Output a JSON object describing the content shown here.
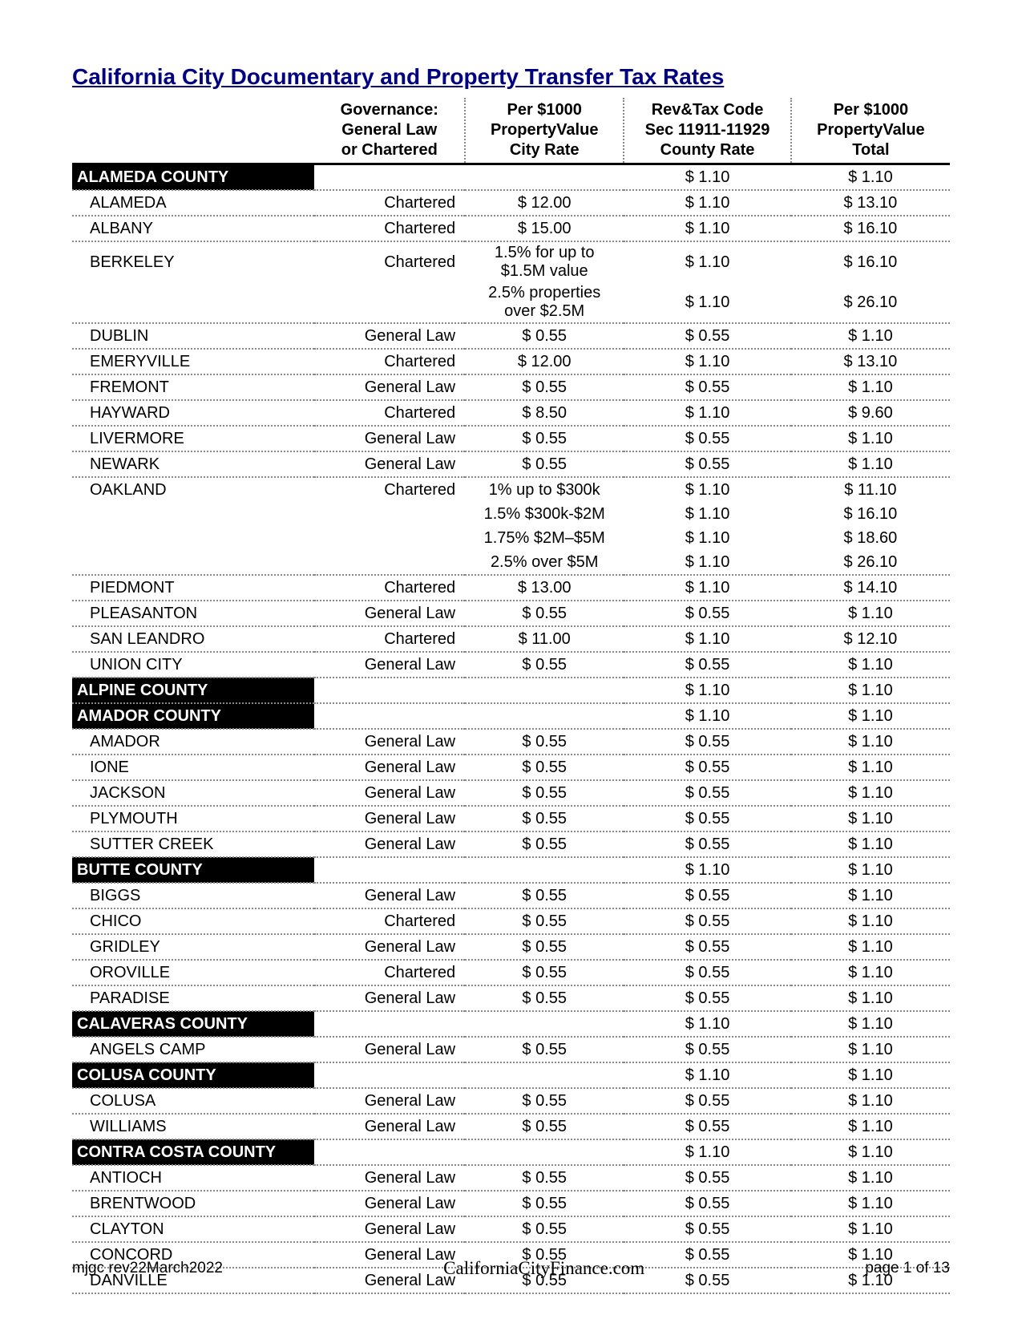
{
  "title": "California City Documentary and Property Transfer Tax Rates",
  "headers": {
    "col0": "",
    "col1": "Governance:\nGeneral Law\nor Chartered",
    "col2": "Per $1000\nPropertyValue\nCity Rate",
    "col3": "Rev&Tax Code\nSec 11911-11929\nCounty Rate",
    "col4": "Per $1000\nPropertyValue\nTotal"
  },
  "rows": [
    {
      "type": "county",
      "name": "ALAMEDA COUNTY",
      "gov": "",
      "city": "",
      "county": "$ 1.10",
      "total": "$ 1.10"
    },
    {
      "type": "city",
      "name": "ALAMEDA",
      "gov": "Chartered",
      "city": "$ 12.00",
      "county": "$ 1.10",
      "total": "$ 13.10"
    },
    {
      "type": "city",
      "name": "ALBANY",
      "gov": "Chartered",
      "city": "$ 15.00",
      "county": "$ 1.10",
      "total": "$ 16.10"
    },
    {
      "type": "city",
      "name": "BERKELEY",
      "gov": "Chartered",
      "city": "1.5% for up to\n$1.5M value",
      "county": "$ 1.10",
      "total": "$ 16.10",
      "noborder": true
    },
    {
      "type": "city",
      "name": "",
      "gov": "",
      "city": "2.5% properties\nover $2.5M",
      "county": "$ 1.10",
      "total": "$ 26.10"
    },
    {
      "type": "city",
      "name": "DUBLIN",
      "gov": "General Law",
      "city": "$ 0.55",
      "county": "$ 0.55",
      "total": "$ 1.10"
    },
    {
      "type": "city",
      "name": "EMERYVILLE",
      "gov": "Chartered",
      "city": "$ 12.00",
      "county": "$ 1.10",
      "total": "$ 13.10"
    },
    {
      "type": "city",
      "name": "FREMONT",
      "gov": "General Law",
      "city": "$ 0.55",
      "county": "$ 0.55",
      "total": "$ 1.10"
    },
    {
      "type": "city",
      "name": "HAYWARD",
      "gov": "Chartered",
      "city": "$ 8.50",
      "county": "$ 1.10",
      "total": "$ 9.60"
    },
    {
      "type": "city",
      "name": "LIVERMORE",
      "gov": "General Law",
      "city": "$ 0.55",
      "county": "$ 0.55",
      "total": "$ 1.10"
    },
    {
      "type": "city",
      "name": "NEWARK",
      "gov": "General Law",
      "city": "$ 0.55",
      "county": "$ 0.55",
      "total": "$ 1.10"
    },
    {
      "type": "city",
      "name": "OAKLAND",
      "gov": "Chartered",
      "city": "1% up to $300k",
      "county": "$ 1.10",
      "total": "$ 11.10",
      "noborder": true
    },
    {
      "type": "city",
      "name": "",
      "gov": "",
      "city": "1.5% $300k-$2M",
      "county": "$ 1.10",
      "total": "$ 16.10",
      "noborder": true
    },
    {
      "type": "city",
      "name": "",
      "gov": "",
      "city": "1.75% $2M–$5M",
      "county": "$ 1.10",
      "total": "$ 18.60",
      "noborder": true
    },
    {
      "type": "city",
      "name": "",
      "gov": "",
      "city": "2.5% over $5M",
      "county": "$ 1.10",
      "total": "$ 26.10"
    },
    {
      "type": "city",
      "name": "PIEDMONT",
      "gov": "Chartered",
      "city": "$ 13.00",
      "county": "$ 1.10",
      "total": "$ 14.10"
    },
    {
      "type": "city",
      "name": "PLEASANTON",
      "gov": "General Law",
      "city": "$ 0.55",
      "county": "$ 0.55",
      "total": "$ 1.10"
    },
    {
      "type": "city",
      "name": "SAN LEANDRO",
      "gov": "Chartered",
      "city": "$ 11.00",
      "county": "$ 1.10",
      "total": "$ 12.10"
    },
    {
      "type": "city",
      "name": "UNION CITY",
      "gov": "General Law",
      "city": "$ 0.55",
      "county": "$ 0.55",
      "total": "$ 1.10"
    },
    {
      "type": "county",
      "name": "ALPINE COUNTY",
      "gov": "",
      "city": "",
      "county": "$ 1.10",
      "total": "$ 1.10"
    },
    {
      "type": "county",
      "name": "AMADOR COUNTY",
      "gov": "",
      "city": "",
      "county": "$ 1.10",
      "total": "$ 1.10"
    },
    {
      "type": "city",
      "name": "AMADOR",
      "gov": "General Law",
      "city": "$ 0.55",
      "county": "$ 0.55",
      "total": "$ 1.10"
    },
    {
      "type": "city",
      "name": "IONE",
      "gov": "General Law",
      "city": "$ 0.55",
      "county": "$ 0.55",
      "total": "$ 1.10"
    },
    {
      "type": "city",
      "name": "JACKSON",
      "gov": "General Law",
      "city": "$ 0.55",
      "county": "$ 0.55",
      "total": "$ 1.10"
    },
    {
      "type": "city",
      "name": "PLYMOUTH",
      "gov": "General Law",
      "city": "$ 0.55",
      "county": "$ 0.55",
      "total": "$ 1.10"
    },
    {
      "type": "city",
      "name": "SUTTER CREEK",
      "gov": "General Law",
      "city": "$ 0.55",
      "county": "$ 0.55",
      "total": "$ 1.10"
    },
    {
      "type": "county",
      "name": "BUTTE COUNTY",
      "gov": "",
      "city": "",
      "county": "$ 1.10",
      "total": "$ 1.10"
    },
    {
      "type": "city",
      "name": "BIGGS",
      "gov": "General Law",
      "city": "$ 0.55",
      "county": "$ 0.55",
      "total": "$ 1.10"
    },
    {
      "type": "city",
      "name": "CHICO",
      "gov": "Chartered",
      "city": "$ 0.55",
      "county": "$ 0.55",
      "total": "$ 1.10"
    },
    {
      "type": "city",
      "name": "GRIDLEY",
      "gov": "General Law",
      "city": "$ 0.55",
      "county": "$ 0.55",
      "total": "$ 1.10"
    },
    {
      "type": "city",
      "name": "OROVILLE",
      "gov": "Chartered",
      "city": "$ 0.55",
      "county": "$ 0.55",
      "total": "$ 1.10"
    },
    {
      "type": "city",
      "name": "PARADISE",
      "gov": "General Law",
      "city": "$ 0.55",
      "county": "$ 0.55",
      "total": "$ 1.10"
    },
    {
      "type": "county",
      "name": "CALAVERAS COUNTY",
      "gov": "",
      "city": "",
      "county": "$ 1.10",
      "total": "$ 1.10"
    },
    {
      "type": "city",
      "name": "ANGELS CAMP",
      "gov": "General Law",
      "city": "$ 0.55",
      "county": "$ 0.55",
      "total": "$ 1.10"
    },
    {
      "type": "county",
      "name": "COLUSA COUNTY",
      "gov": "",
      "city": "",
      "county": "$ 1.10",
      "total": "$ 1.10"
    },
    {
      "type": "city",
      "name": "COLUSA",
      "gov": "General Law",
      "city": "$ 0.55",
      "county": "$ 0.55",
      "total": "$ 1.10"
    },
    {
      "type": "city",
      "name": "WILLIAMS",
      "gov": "General Law",
      "city": "$ 0.55",
      "county": "$ 0.55",
      "total": "$ 1.10"
    },
    {
      "type": "county",
      "name": "CONTRA COSTA COUNTY",
      "gov": "",
      "city": "",
      "county": "$ 1.10",
      "total": "$ 1.10"
    },
    {
      "type": "city",
      "name": "ANTIOCH",
      "gov": "General Law",
      "city": "$ 0.55",
      "county": "$ 0.55",
      "total": "$ 1.10"
    },
    {
      "type": "city",
      "name": "BRENTWOOD",
      "gov": "General Law",
      "city": "$ 0.55",
      "county": "$ 0.55",
      "total": "$ 1.10"
    },
    {
      "type": "city",
      "name": "CLAYTON",
      "gov": "General Law",
      "city": "$ 0.55",
      "county": "$ 0.55",
      "total": "$ 1.10"
    },
    {
      "type": "city",
      "name": "CONCORD",
      "gov": "General Law",
      "city": "$ 0.55",
      "county": "$ 0.55",
      "total": "$ 1.10"
    },
    {
      "type": "city",
      "name": "DANVILLE",
      "gov": "General Law",
      "city": "$ 0.55",
      "county": "$ 0.55",
      "total": "$ 1.10"
    }
  ],
  "footer": {
    "left": "mjgc rev22March2022",
    "center": "CaliforniaCityFinance.com",
    "right": "page 1 of 13"
  },
  "colors": {
    "title": "#000080",
    "text": "#000000",
    "county_bg": "#000000",
    "county_fg": "#ffffff",
    "dotted": "#888888",
    "background": "#ffffff"
  },
  "typography": {
    "title_fontsize": 28,
    "cell_fontsize": 20,
    "footer_fontsize": 19
  }
}
